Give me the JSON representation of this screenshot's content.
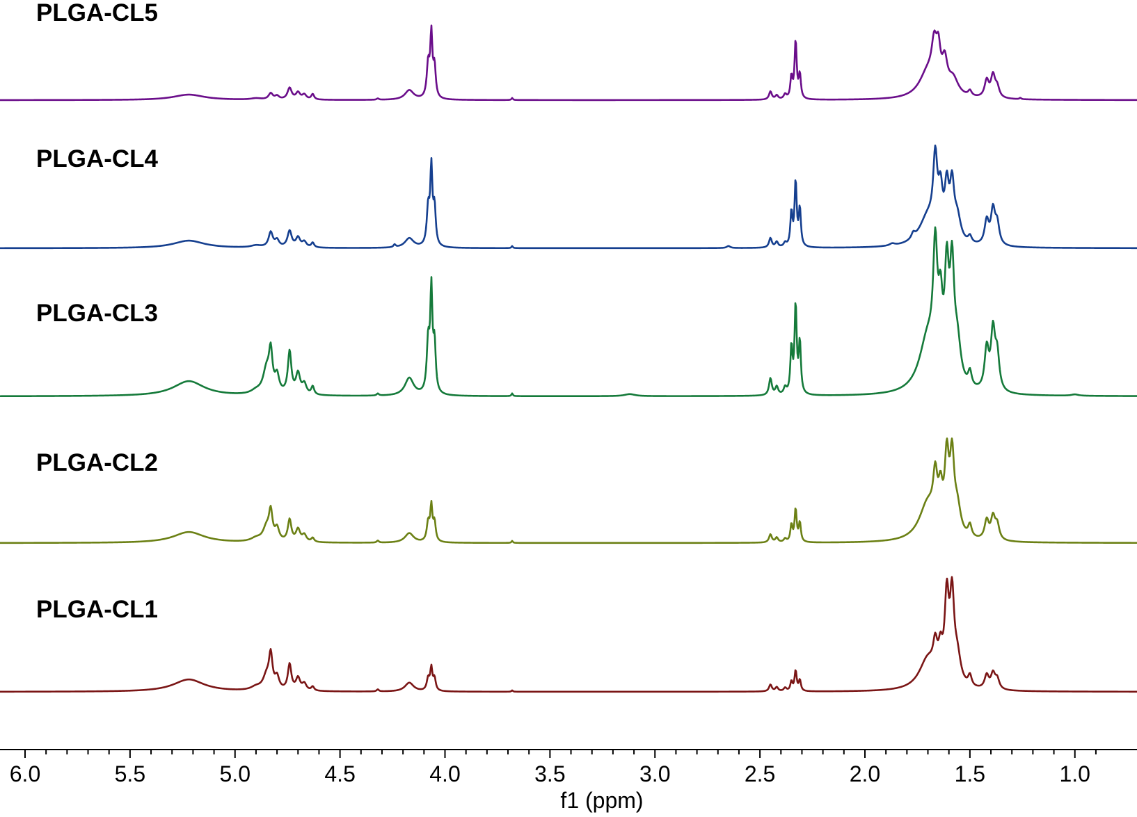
{
  "chart_data": {
    "type": "line",
    "xlabel": "f1 (ppm)",
    "x_reversed": true,
    "xlim": [
      6.0,
      0.85
    ],
    "xticks": [
      "6.0",
      "5.5",
      "5.0",
      "4.5",
      "4.0",
      "3.5",
      "3.0",
      "2.5",
      "2.0",
      "1.5",
      "1.0"
    ],
    "grid": false,
    "series": [
      {
        "name": "PLGA-CL5",
        "color": "#6a0d8a",
        "peaks": [
          [
            5.22,
            0.08,
            0.09
          ],
          [
            4.9,
            0.02,
            0.03
          ],
          [
            4.83,
            0.09,
            0.012
          ],
          [
            4.8,
            0.05,
            0.012
          ],
          [
            4.74,
            0.17,
            0.012
          ],
          [
            4.7,
            0.1,
            0.012
          ],
          [
            4.67,
            0.07,
            0.012
          ],
          [
            4.63,
            0.08,
            0.008
          ],
          [
            4.32,
            0.02,
            0.006
          ],
          [
            4.17,
            0.14,
            0.025
          ],
          [
            4.08,
            0.5,
            0.008
          ],
          [
            4.065,
            0.9,
            0.006
          ],
          [
            4.05,
            0.45,
            0.007
          ],
          [
            3.68,
            0.03,
            0.004
          ],
          [
            2.45,
            0.12,
            0.008
          ],
          [
            2.42,
            0.06,
            0.008
          ],
          [
            2.38,
            0.07,
            0.008
          ],
          [
            2.35,
            0.32,
            0.006
          ],
          [
            2.33,
            0.85,
            0.006
          ],
          [
            2.31,
            0.35,
            0.006
          ],
          [
            1.7,
            0.38,
            0.05
          ],
          [
            1.67,
            0.55,
            0.015
          ],
          [
            1.65,
            0.48,
            0.012
          ],
          [
            1.62,
            0.42,
            0.015
          ],
          [
            1.58,
            0.25,
            0.03
          ],
          [
            1.5,
            0.08,
            0.01
          ],
          [
            1.42,
            0.25,
            0.012
          ],
          [
            1.39,
            0.32,
            0.012
          ],
          [
            1.37,
            0.15,
            0.012
          ],
          [
            1.26,
            0.02,
            0.005
          ]
        ]
      },
      {
        "name": "PLGA-CL4",
        "color": "#153f8f",
        "peaks": [
          [
            5.22,
            0.11,
            0.09
          ],
          [
            4.9,
            0.03,
            0.03
          ],
          [
            4.83,
            0.22,
            0.012
          ],
          [
            4.8,
            0.1,
            0.012
          ],
          [
            4.74,
            0.24,
            0.012
          ],
          [
            4.7,
            0.14,
            0.012
          ],
          [
            4.67,
            0.08,
            0.012
          ],
          [
            4.63,
            0.07,
            0.008
          ],
          [
            4.24,
            0.04,
            0.006
          ],
          [
            4.17,
            0.14,
            0.025
          ],
          [
            4.08,
            0.55,
            0.008
          ],
          [
            4.065,
            1.1,
            0.006
          ],
          [
            4.05,
            0.55,
            0.007
          ],
          [
            3.68,
            0.03,
            0.004
          ],
          [
            2.65,
            0.03,
            0.01
          ],
          [
            2.45,
            0.14,
            0.008
          ],
          [
            2.42,
            0.08,
            0.008
          ],
          [
            2.38,
            0.06,
            0.008
          ],
          [
            2.35,
            0.5,
            0.006
          ],
          [
            2.33,
            0.95,
            0.006
          ],
          [
            2.31,
            0.55,
            0.006
          ],
          [
            1.87,
            0.03,
            0.015
          ],
          [
            1.77,
            0.08,
            0.01
          ],
          [
            1.7,
            0.42,
            0.05
          ],
          [
            1.665,
            1.05,
            0.012
          ],
          [
            1.64,
            0.6,
            0.012
          ],
          [
            1.61,
            0.72,
            0.012
          ],
          [
            1.585,
            0.75,
            0.012
          ],
          [
            1.56,
            0.35,
            0.02
          ],
          [
            1.5,
            0.1,
            0.01
          ],
          [
            1.42,
            0.35,
            0.012
          ],
          [
            1.39,
            0.5,
            0.012
          ],
          [
            1.37,
            0.3,
            0.012
          ]
        ]
      },
      {
        "name": "PLGA-CL3",
        "color": "#157a3a",
        "peaks": [
          [
            5.22,
            0.22,
            0.09
          ],
          [
            4.9,
            0.05,
            0.03
          ],
          [
            4.85,
            0.35,
            0.02
          ],
          [
            4.83,
            0.55,
            0.01
          ],
          [
            4.8,
            0.25,
            0.012
          ],
          [
            4.74,
            0.62,
            0.01
          ],
          [
            4.7,
            0.3,
            0.012
          ],
          [
            4.67,
            0.15,
            0.012
          ],
          [
            4.63,
            0.12,
            0.008
          ],
          [
            4.32,
            0.03,
            0.006
          ],
          [
            4.17,
            0.26,
            0.025
          ],
          [
            4.08,
            0.75,
            0.008
          ],
          [
            4.065,
            1.45,
            0.006
          ],
          [
            4.05,
            0.7,
            0.007
          ],
          [
            3.68,
            0.04,
            0.004
          ],
          [
            3.12,
            0.03,
            0.03
          ],
          [
            2.45,
            0.25,
            0.008
          ],
          [
            2.42,
            0.12,
            0.008
          ],
          [
            2.38,
            0.1,
            0.008
          ],
          [
            2.35,
            0.68,
            0.006
          ],
          [
            2.33,
            1.3,
            0.006
          ],
          [
            2.31,
            0.75,
            0.006
          ],
          [
            1.7,
            0.8,
            0.05
          ],
          [
            1.665,
            1.65,
            0.012
          ],
          [
            1.64,
            0.9,
            0.012
          ],
          [
            1.61,
            1.5,
            0.012
          ],
          [
            1.585,
            1.55,
            0.012
          ],
          [
            1.56,
            0.6,
            0.02
          ],
          [
            1.5,
            0.22,
            0.01
          ],
          [
            1.42,
            0.6,
            0.012
          ],
          [
            1.39,
            0.85,
            0.012
          ],
          [
            1.37,
            0.5,
            0.012
          ],
          [
            1.0,
            0.02,
            0.02
          ]
        ]
      },
      {
        "name": "PLGA-CL2",
        "color": "#6b8014",
        "peaks": [
          [
            5.22,
            0.16,
            0.09
          ],
          [
            4.9,
            0.05,
            0.03
          ],
          [
            4.85,
            0.2,
            0.02
          ],
          [
            4.83,
            0.4,
            0.01
          ],
          [
            4.8,
            0.18,
            0.012
          ],
          [
            4.74,
            0.32,
            0.01
          ],
          [
            4.7,
            0.18,
            0.012
          ],
          [
            4.67,
            0.1,
            0.012
          ],
          [
            4.63,
            0.06,
            0.008
          ],
          [
            4.32,
            0.03,
            0.006
          ],
          [
            4.17,
            0.14,
            0.025
          ],
          [
            4.08,
            0.28,
            0.008
          ],
          [
            4.065,
            0.5,
            0.006
          ],
          [
            4.05,
            0.28,
            0.007
          ],
          [
            3.68,
            0.03,
            0.004
          ],
          [
            2.45,
            0.12,
            0.008
          ],
          [
            2.42,
            0.07,
            0.008
          ],
          [
            2.38,
            0.05,
            0.008
          ],
          [
            2.35,
            0.25,
            0.006
          ],
          [
            2.33,
            0.48,
            0.006
          ],
          [
            2.31,
            0.28,
            0.006
          ],
          [
            1.7,
            0.55,
            0.05
          ],
          [
            1.665,
            0.65,
            0.012
          ],
          [
            1.64,
            0.5,
            0.012
          ],
          [
            1.61,
            1.05,
            0.012
          ],
          [
            1.585,
            1.05,
            0.012
          ],
          [
            1.56,
            0.4,
            0.02
          ],
          [
            1.5,
            0.18,
            0.01
          ],
          [
            1.42,
            0.28,
            0.012
          ],
          [
            1.39,
            0.32,
            0.012
          ],
          [
            1.37,
            0.22,
            0.012
          ]
        ]
      },
      {
        "name": "PLGA-CL1",
        "color": "#7a1515",
        "peaks": [
          [
            5.22,
            0.18,
            0.09
          ],
          [
            4.9,
            0.05,
            0.03
          ],
          [
            4.85,
            0.2,
            0.02
          ],
          [
            4.83,
            0.48,
            0.01
          ],
          [
            4.8,
            0.18,
            0.012
          ],
          [
            4.74,
            0.38,
            0.01
          ],
          [
            4.7,
            0.18,
            0.012
          ],
          [
            4.67,
            0.1,
            0.012
          ],
          [
            4.63,
            0.06,
            0.008
          ],
          [
            4.32,
            0.03,
            0.006
          ],
          [
            4.17,
            0.13,
            0.025
          ],
          [
            4.08,
            0.18,
            0.008
          ],
          [
            4.065,
            0.32,
            0.006
          ],
          [
            4.05,
            0.18,
            0.007
          ],
          [
            3.68,
            0.02,
            0.004
          ],
          [
            2.45,
            0.1,
            0.008
          ],
          [
            2.42,
            0.06,
            0.008
          ],
          [
            2.38,
            0.05,
            0.008
          ],
          [
            2.35,
            0.14,
            0.006
          ],
          [
            2.33,
            0.3,
            0.006
          ],
          [
            2.31,
            0.16,
            0.006
          ],
          [
            1.7,
            0.45,
            0.05
          ],
          [
            1.665,
            0.4,
            0.012
          ],
          [
            1.64,
            0.38,
            0.012
          ],
          [
            1.61,
            1.2,
            0.012
          ],
          [
            1.585,
            1.2,
            0.012
          ],
          [
            1.56,
            0.4,
            0.02
          ],
          [
            1.5,
            0.16,
            0.01
          ],
          [
            1.42,
            0.2,
            0.012
          ],
          [
            1.39,
            0.22,
            0.012
          ],
          [
            1.37,
            0.15,
            0.012
          ]
        ]
      }
    ]
  }
}
